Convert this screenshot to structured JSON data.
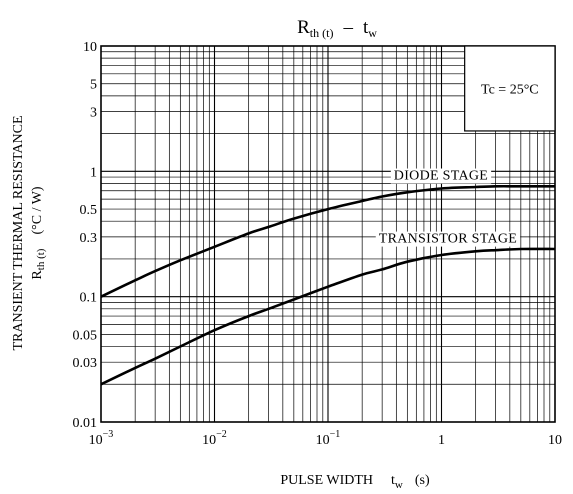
{
  "chart_data": {
    "type": "line",
    "title_main": "R",
    "title_main_sub": "th (t)",
    "title_dash": "–",
    "title_var": "t",
    "title_var_sub": "w",
    "xlabel_main": "PULSE WIDTH",
    "xlabel_var": "t",
    "xlabel_var_sub": "w",
    "xlabel_unit": "(s)",
    "ylabel_line1": "TRANSIENT THERMAL RESISTANCE",
    "ylabel_line2_main": "R",
    "ylabel_line2_sub": "th (t)",
    "ylabel_line2_unit": "(°C / W)",
    "xscale": "log",
    "yscale": "log",
    "xlim": [
      0.001,
      10
    ],
    "ylim": [
      0.01,
      10
    ],
    "grid": true,
    "condition": "Tc = 25°C",
    "x_ticks": [
      {
        "base": "10",
        "exp": "−3",
        "value": 0.001
      },
      {
        "base": "10",
        "exp": "−2",
        "value": 0.01
      },
      {
        "base": "10",
        "exp": "−1",
        "value": 0.1
      },
      {
        "label": "1",
        "value": 1
      },
      {
        "label": "10",
        "value": 10
      }
    ],
    "y_ticks": [
      {
        "label": "0.01",
        "value": 0.01
      },
      {
        "label": "0.03",
        "value": 0.03
      },
      {
        "label": "0.05",
        "value": 0.05
      },
      {
        "label": "0.1",
        "value": 0.1
      },
      {
        "label": "0.3",
        "value": 0.3
      },
      {
        "label": "0.5",
        "value": 0.5
      },
      {
        "label": "1",
        "value": 1
      },
      {
        "label": "3",
        "value": 3
      },
      {
        "label": "5",
        "value": 5
      },
      {
        "label": "10",
        "value": 10
      }
    ],
    "series": [
      {
        "name": "DIODE STAGE",
        "x": [
          0.001,
          0.002,
          0.003,
          0.005,
          0.01,
          0.02,
          0.03,
          0.05,
          0.1,
          0.2,
          0.3,
          0.5,
          1,
          2,
          3,
          5,
          10
        ],
        "y": [
          0.1,
          0.135,
          0.16,
          0.195,
          0.25,
          0.32,
          0.36,
          0.42,
          0.5,
          0.58,
          0.63,
          0.68,
          0.73,
          0.75,
          0.76,
          0.76,
          0.76
        ]
      },
      {
        "name": "TRANSISTOR STAGE",
        "x": [
          0.001,
          0.002,
          0.003,
          0.005,
          0.01,
          0.02,
          0.03,
          0.05,
          0.1,
          0.2,
          0.3,
          0.5,
          1,
          2,
          3,
          5,
          10
        ],
        "y": [
          0.02,
          0.027,
          0.032,
          0.04,
          0.054,
          0.07,
          0.08,
          0.095,
          0.12,
          0.15,
          0.165,
          0.19,
          0.215,
          0.23,
          0.235,
          0.24,
          0.24
        ]
      }
    ]
  }
}
